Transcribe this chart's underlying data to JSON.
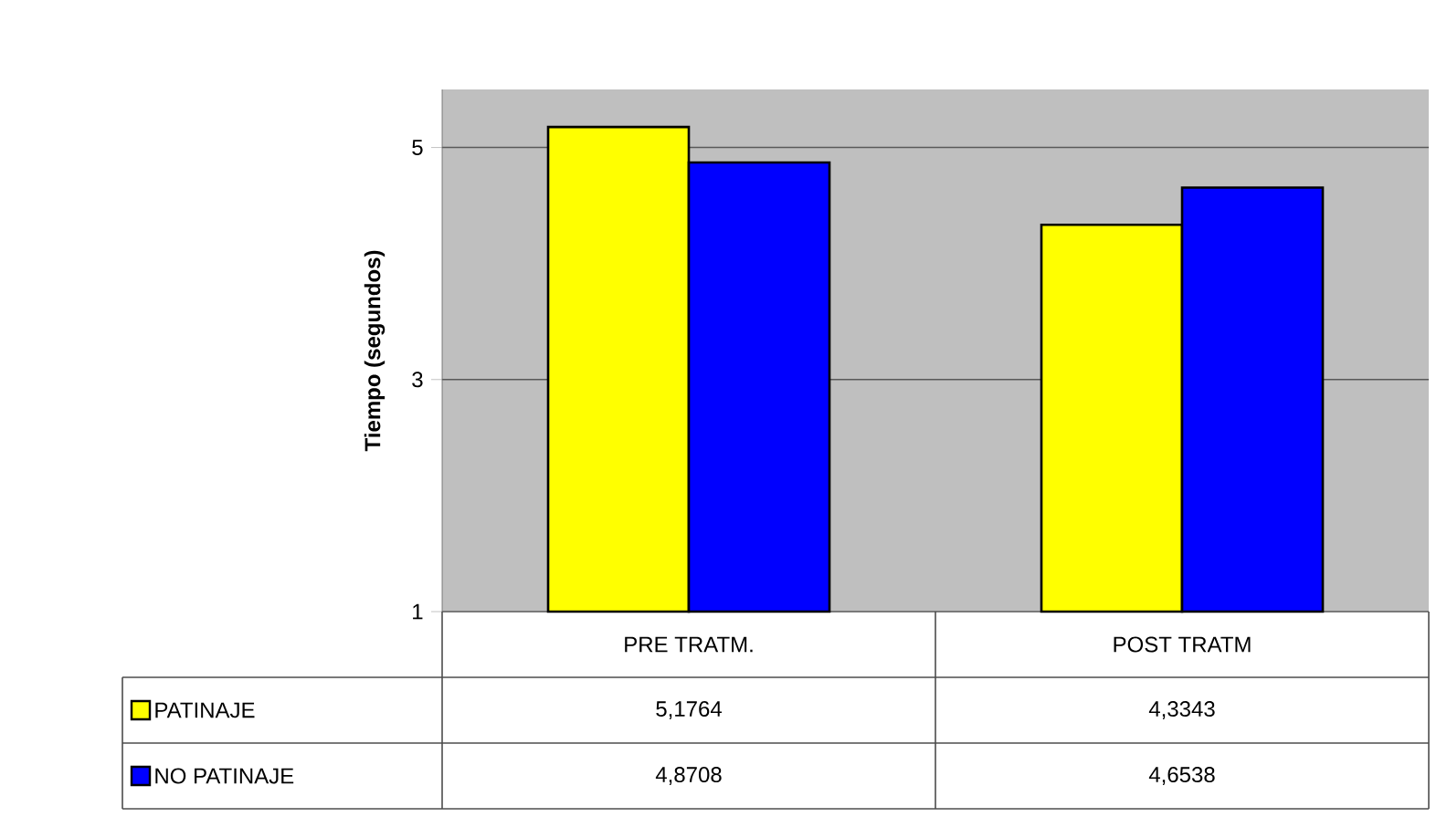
{
  "chart_data": {
    "type": "bar",
    "ylabel": "Tiempo (segundos)",
    "categories": [
      "PRE TRATM.",
      "POST TRATM"
    ],
    "series": [
      {
        "name": "PATINAJE",
        "color": "#ffff00",
        "values": [
          5.1764,
          4.3343
        ],
        "value_labels": [
          "5,1764",
          "4,3343"
        ]
      },
      {
        "name": "NO PATINAJE",
        "color": "#0000ff",
        "values": [
          4.8708,
          4.6538
        ],
        "value_labels": [
          "4,8708",
          "4,6538"
        ]
      }
    ],
    "ylim": [
      1,
      5.5
    ],
    "yticks": [
      1,
      3,
      5
    ],
    "grid": "y",
    "legend": "bottom"
  }
}
